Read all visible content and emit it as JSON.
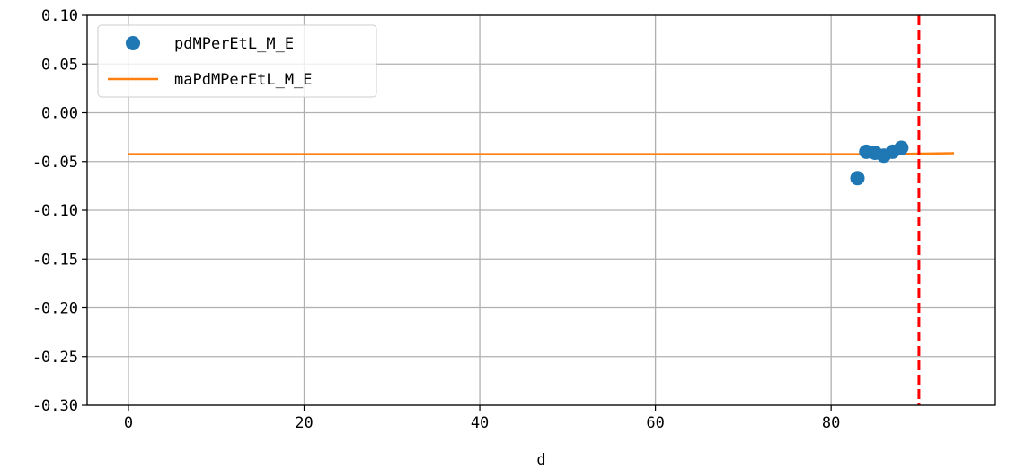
{
  "chart_data": {
    "type": "scatter",
    "title": "",
    "xlabel": "d",
    "ylabel": "",
    "xlim": [
      -4.7,
      98.7
    ],
    "ylim": [
      -0.3,
      0.1
    ],
    "xticks": [
      0,
      20,
      40,
      60,
      80
    ],
    "xtick_labels": [
      "0",
      "20",
      "40",
      "60",
      "80"
    ],
    "yticks": [
      0.1,
      0.05,
      0.0,
      -0.05,
      -0.1,
      -0.15,
      -0.2,
      -0.25,
      -0.3
    ],
    "ytick_labels": [
      "0.10",
      "0.05",
      "0.00",
      "-0.05",
      "-0.10",
      "-0.15",
      "-0.20",
      "-0.25",
      "-0.30"
    ],
    "grid": true,
    "legend_position": "top-left",
    "series": [
      {
        "name": "pdMPerEtL_M_E",
        "type": "scatter",
        "color": "#1f77b4",
        "x": [
          83,
          84,
          85,
          86,
          87,
          88
        ],
        "y": [
          -0.067,
          -0.04,
          -0.041,
          -0.044,
          -0.04,
          -0.036
        ]
      },
      {
        "name": "maPdMPerEtL_M_E",
        "type": "line",
        "color": "#ff7f0e",
        "x": [
          0,
          86,
          94
        ],
        "y": [
          -0.0425,
          -0.0425,
          -0.0415
        ]
      }
    ],
    "vlines": [
      {
        "x": 90,
        "color": "#ff0000",
        "style": "dashed"
      }
    ]
  }
}
